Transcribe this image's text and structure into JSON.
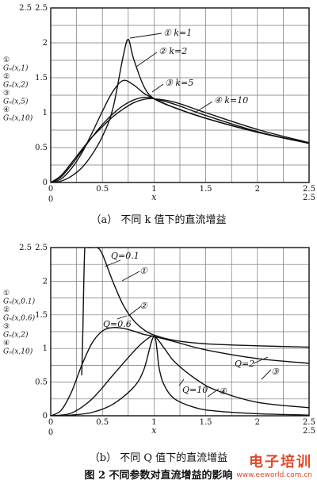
{
  "chart_data": [
    {
      "type": "line",
      "caption": "（a）  不同 k 值下的直流增益",
      "xlabel": "x",
      "xlim": [
        0,
        2.5
      ],
      "ylim": [
        0,
        2.5
      ],
      "x_ticks": [
        "0",
        "0.5",
        "1",
        "1.5",
        "2",
        "2.5"
      ],
      "y_ticks": [
        "0",
        "0.5",
        "1",
        "1.5",
        "2",
        "2.5"
      ],
      "corner_x_label": "2.5",
      "corner_y_label": "2.5",
      "x_origin_label": "0",
      "grid": true,
      "ylabel_lines": [
        "①",
        "Gₙ(x,1)",
        "②",
        "Gₙ(x,2)",
        "③",
        "Gₙ(x,5)",
        "④",
        "Gₙ(x,10)"
      ],
      "annotations": [
        "① k=1",
        "② k=2",
        "③ k=5",
        "④ k=10"
      ],
      "series": [
        {
          "name": "① k=1",
          "x": [
            0,
            0.1,
            0.2,
            0.3,
            0.4,
            0.5,
            0.6,
            0.7,
            0.75,
            0.8,
            0.9,
            1,
            1.2,
            1.5,
            2,
            2.5
          ],
          "y": [
            0,
            0.02,
            0.09,
            0.21,
            0.4,
            0.66,
            1.05,
            1.8,
            2.05,
            1.78,
            1.38,
            1.2,
            1.07,
            0.92,
            0.72,
            0.56
          ]
        },
        {
          "name": "② k=2",
          "x": [
            0,
            0.1,
            0.2,
            0.3,
            0.4,
            0.5,
            0.6,
            0.7,
            0.8,
            0.9,
            1,
            1.2,
            1.5,
            2,
            2.5
          ],
          "y": [
            0,
            0.05,
            0.2,
            0.42,
            0.71,
            1.02,
            1.3,
            1.46,
            1.4,
            1.28,
            1.2,
            1.07,
            0.92,
            0.72,
            0.57
          ]
        },
        {
          "name": "③ k=5",
          "x": [
            0,
            0.1,
            0.2,
            0.3,
            0.4,
            0.5,
            0.6,
            0.7,
            0.8,
            0.9,
            1,
            1.2,
            1.5,
            2,
            2.5
          ],
          "y": [
            0,
            0.08,
            0.25,
            0.45,
            0.65,
            0.83,
            0.98,
            1.1,
            1.18,
            1.22,
            1.2,
            1.12,
            0.96,
            0.73,
            0.56
          ]
        },
        {
          "name": "④ k=10",
          "x": [
            0,
            0.1,
            0.2,
            0.3,
            0.4,
            0.5,
            0.6,
            0.7,
            0.8,
            0.9,
            1,
            1.2,
            1.5,
            2,
            2.5
          ],
          "y": [
            0,
            0.1,
            0.28,
            0.47,
            0.65,
            0.8,
            0.94,
            1.05,
            1.14,
            1.19,
            1.2,
            1.15,
            1.0,
            0.76,
            0.57
          ]
        }
      ]
    },
    {
      "type": "line",
      "caption": "（b）  不同 Q 值下的直流增益",
      "xlabel": "x",
      "xlim": [
        0,
        2.5
      ],
      "ylim": [
        0,
        2.5
      ],
      "x_ticks": [
        "0",
        "0.5",
        "1",
        "1.5",
        "2",
        "2.5"
      ],
      "y_ticks": [
        "0",
        "0.5",
        "1",
        "1.5",
        "2",
        "2.5"
      ],
      "corner_x_label": "2.5",
      "corner_y_label": "2.5",
      "x_origin_label": "0",
      "grid": true,
      "ylabel_lines": [
        "①",
        "Gₙ(x,0.1)",
        "②",
        "Gₙ(x,0.6)",
        "③",
        "Gₙ(x,2)",
        "④",
        "Gₙ(x,10)"
      ],
      "annotations": [
        "Q=0.1",
        "Q=0.6",
        "Q=2",
        "Q=10",
        "①",
        "②",
        "③",
        "④"
      ],
      "series": [
        {
          "name": "① Q=0.1",
          "x": [
            0.3,
            0.31,
            0.33,
            0.36,
            0.4,
            0.45,
            0.5,
            0.6,
            0.7,
            0.8,
            0.9,
            1,
            1.2,
            1.5,
            2,
            2.5
          ],
          "y": [
            0.6,
            1.2,
            2.5,
            2.5,
            2.5,
            2.5,
            2.4,
            2.0,
            1.65,
            1.42,
            1.28,
            1.2,
            1.12,
            1.07,
            1.04,
            1.02
          ]
        },
        {
          "name": "② Q=0.6",
          "x": [
            0,
            0.1,
            0.2,
            0.3,
            0.4,
            0.5,
            0.6,
            0.7,
            0.8,
            0.9,
            1,
            1.2,
            1.5,
            2,
            2.5
          ],
          "y": [
            0,
            0.08,
            0.35,
            0.75,
            1.08,
            1.26,
            1.31,
            1.3,
            1.26,
            1.21,
            1.18,
            1.1,
            0.98,
            0.85,
            0.78
          ]
        },
        {
          "name": "③ Q=2",
          "x": [
            0,
            0.2,
            0.4,
            0.6,
            0.8,
            0.9,
            1,
            1.1,
            1.2,
            1.4,
            1.6,
            2,
            2.5
          ],
          "y": [
            0,
            0.04,
            0.25,
            0.6,
            0.95,
            1.1,
            1.18,
            1.0,
            0.8,
            0.55,
            0.38,
            0.2,
            0.12
          ]
        },
        {
          "name": "④ Q=10",
          "x": [
            0,
            0.2,
            0.4,
            0.6,
            0.8,
            0.9,
            1,
            1.05,
            1.1,
            1.2,
            1.4,
            1.6,
            2,
            2.5
          ],
          "y": [
            0,
            0.01,
            0.05,
            0.17,
            0.42,
            0.68,
            1.18,
            0.7,
            0.45,
            0.25,
            0.12,
            0.07,
            0.03,
            0.01
          ]
        }
      ]
    }
  ],
  "figure_title": "图 2    不同参数对直流增益的影响",
  "watermark": {
    "main": "电子培训",
    "url": "www.eeworld.com.cn"
  }
}
